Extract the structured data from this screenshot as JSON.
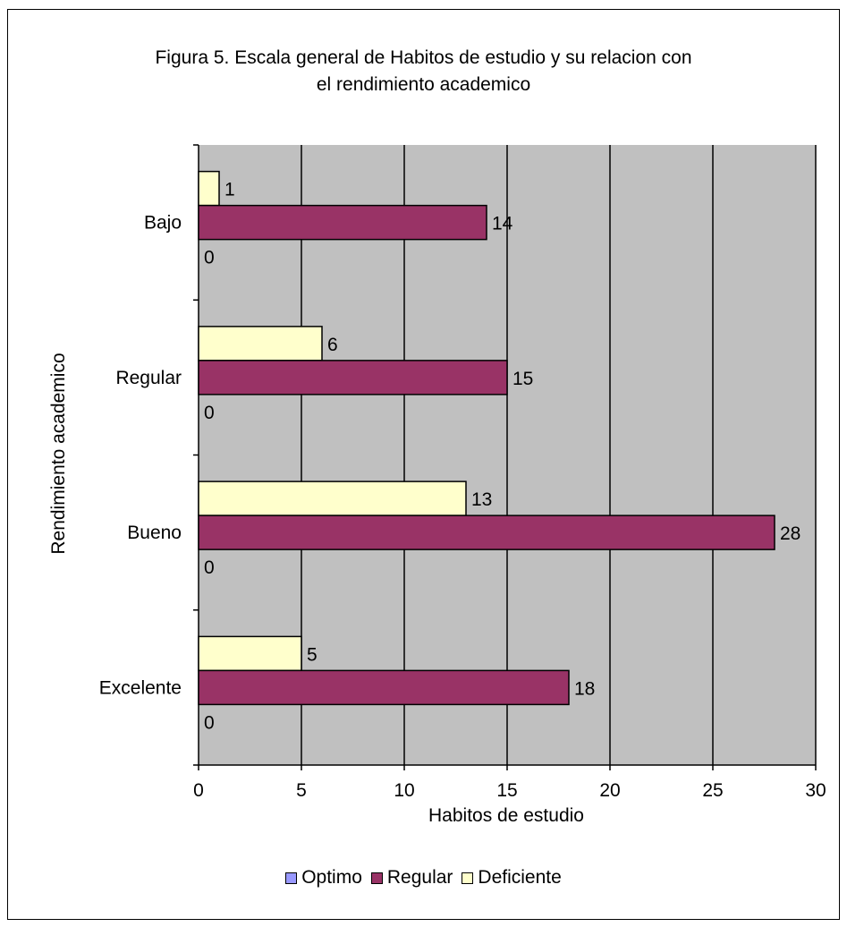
{
  "chart_data": {
    "type": "bar",
    "orientation": "horizontal",
    "title_lines": [
      "Figura  5. Escala general de Habitos de estudio y su relacion con",
      "el rendimiento academico"
    ],
    "xlabel": "Habitos de estudio",
    "ylabel": "Rendimiento academico",
    "categories": [
      "Bajo",
      "Regular",
      "Bueno",
      "Excelente"
    ],
    "series": [
      {
        "name": "Optimo",
        "color": "#9999ff",
        "values": [
          0,
          0,
          0,
          0
        ]
      },
      {
        "name": "Regular",
        "color": "#993366",
        "values": [
          14,
          15,
          28,
          18
        ]
      },
      {
        "name": "Deficiente",
        "color": "#ffffcc",
        "values": [
          1,
          6,
          13,
          5
        ]
      }
    ],
    "xlim": [
      0,
      30
    ],
    "xticks": [
      "0",
      "5",
      "10",
      "15",
      "20",
      "25",
      "30"
    ],
    "grid": true,
    "plot_background": "#c0c0c0",
    "legend_position": "bottom"
  }
}
